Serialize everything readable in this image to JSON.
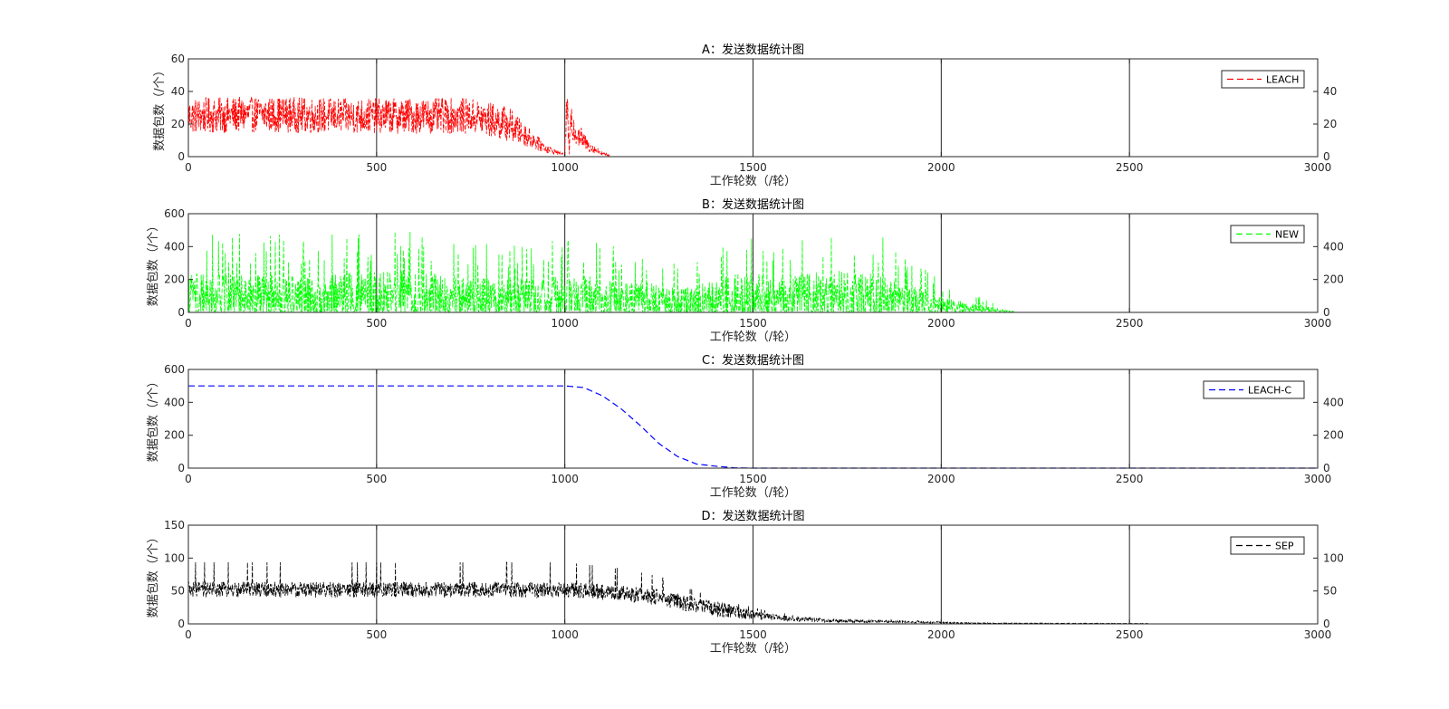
{
  "chart_data": [
    {
      "type": "line",
      "title": "A：发送数据统计图",
      "xlabel": "工作轮数（/轮）",
      "ylabel": "数据包数（/个）",
      "xlim": [
        0,
        3000
      ],
      "ylim": [
        0,
        60
      ],
      "xticks": [
        "0",
        "500",
        "1000",
        "1500",
        "2000",
        "2500",
        "3000"
      ],
      "yticks": [
        "0",
        "20",
        "40",
        "60"
      ],
      "yticks_right": [
        "0",
        "20",
        "40"
      ],
      "grid": true,
      "legend_position": "top-right",
      "series": [
        {
          "name": "LEACH",
          "color": "#ff0000",
          "style": "dashed",
          "behavior": "noisy",
          "x": [
            0,
            200,
            400,
            600,
            750,
            850,
            950,
            1000,
            1005,
            1012,
            1015,
            1060,
            1100,
            1130,
            1140,
            3000
          ],
          "y": [
            25,
            26,
            25,
            25,
            25,
            20,
            5,
            1,
            35,
            2,
            20,
            7,
            2,
            0,
            0,
            0
          ]
        }
      ]
    },
    {
      "type": "line",
      "title": "B：发送数据统计图",
      "xlabel": "工作轮数（/轮）",
      "ylabel": "数据包数（/个）",
      "xlim": [
        0,
        3000
      ],
      "ylim": [
        0,
        600
      ],
      "xticks": [
        "0",
        "500",
        "1000",
        "1500",
        "2000",
        "2500",
        "3000"
      ],
      "yticks": [
        "0",
        "200",
        "400",
        "600"
      ],
      "yticks_right": [
        "0",
        "200",
        "400"
      ],
      "grid": true,
      "legend_position": "top-right",
      "series": [
        {
          "name": "NEW",
          "color": "#00ff00",
          "style": "dashed",
          "behavior": "spiky",
          "x": [
            0,
            300,
            550,
            800,
            1050,
            1200,
            1300,
            1450,
            1600,
            1750,
            1900,
            2000,
            2100,
            2200,
            3000
          ],
          "y": [
            150,
            140,
            160,
            130,
            140,
            120,
            90,
            150,
            140,
            170,
            120,
            60,
            30,
            0,
            0
          ]
        }
      ]
    },
    {
      "type": "line",
      "title": "C：发送数据统计图",
      "xlabel": "工作轮数（/轮）",
      "ylabel": "数据包数（/个）",
      "xlim": [
        0,
        3000
      ],
      "ylim": [
        0,
        600
      ],
      "xticks": [
        "0",
        "500",
        "1000",
        "1500",
        "2000",
        "2500",
        "3000"
      ],
      "yticks": [
        "0",
        "200",
        "400",
        "600"
      ],
      "yticks_right": [
        "0",
        "200",
        "400"
      ],
      "grid": true,
      "legend_position": "top-right",
      "series": [
        {
          "name": "LEACH-C",
          "color": "#0000ff",
          "style": "dashed",
          "behavior": "smooth",
          "x": [
            0,
            1000,
            1050,
            1100,
            1150,
            1200,
            1250,
            1300,
            1350,
            1400,
            1450,
            1500,
            3000
          ],
          "y": [
            500,
            500,
            490,
            440,
            360,
            260,
            150,
            70,
            25,
            12,
            2,
            0,
            0
          ]
        }
      ]
    },
    {
      "type": "line",
      "title": "D：发送数据统计图",
      "xlabel": "工作轮数（/轮）",
      "ylabel": "数据包数（/个）",
      "xlim": [
        0,
        3000
      ],
      "ylim": [
        0,
        150
      ],
      "xticks": [
        "0",
        "500",
        "1000",
        "1500",
        "2000",
        "2500",
        "3000"
      ],
      "yticks": [
        "0",
        "50",
        "100",
        "150"
      ],
      "yticks_right": [
        "0",
        "50",
        "100"
      ],
      "grid": true,
      "legend_position": "top-right",
      "series": [
        {
          "name": "SEP",
          "color": "#000000",
          "style": "dashed",
          "behavior": "noisy-low",
          "x": [
            0,
            500,
            1000,
            1150,
            1250,
            1350,
            1450,
            1550,
            1700,
            1900,
            2100,
            3000
          ],
          "y": [
            52,
            52,
            52,
            47,
            40,
            28,
            18,
            10,
            5,
            3,
            1,
            0
          ]
        }
      ]
    }
  ]
}
